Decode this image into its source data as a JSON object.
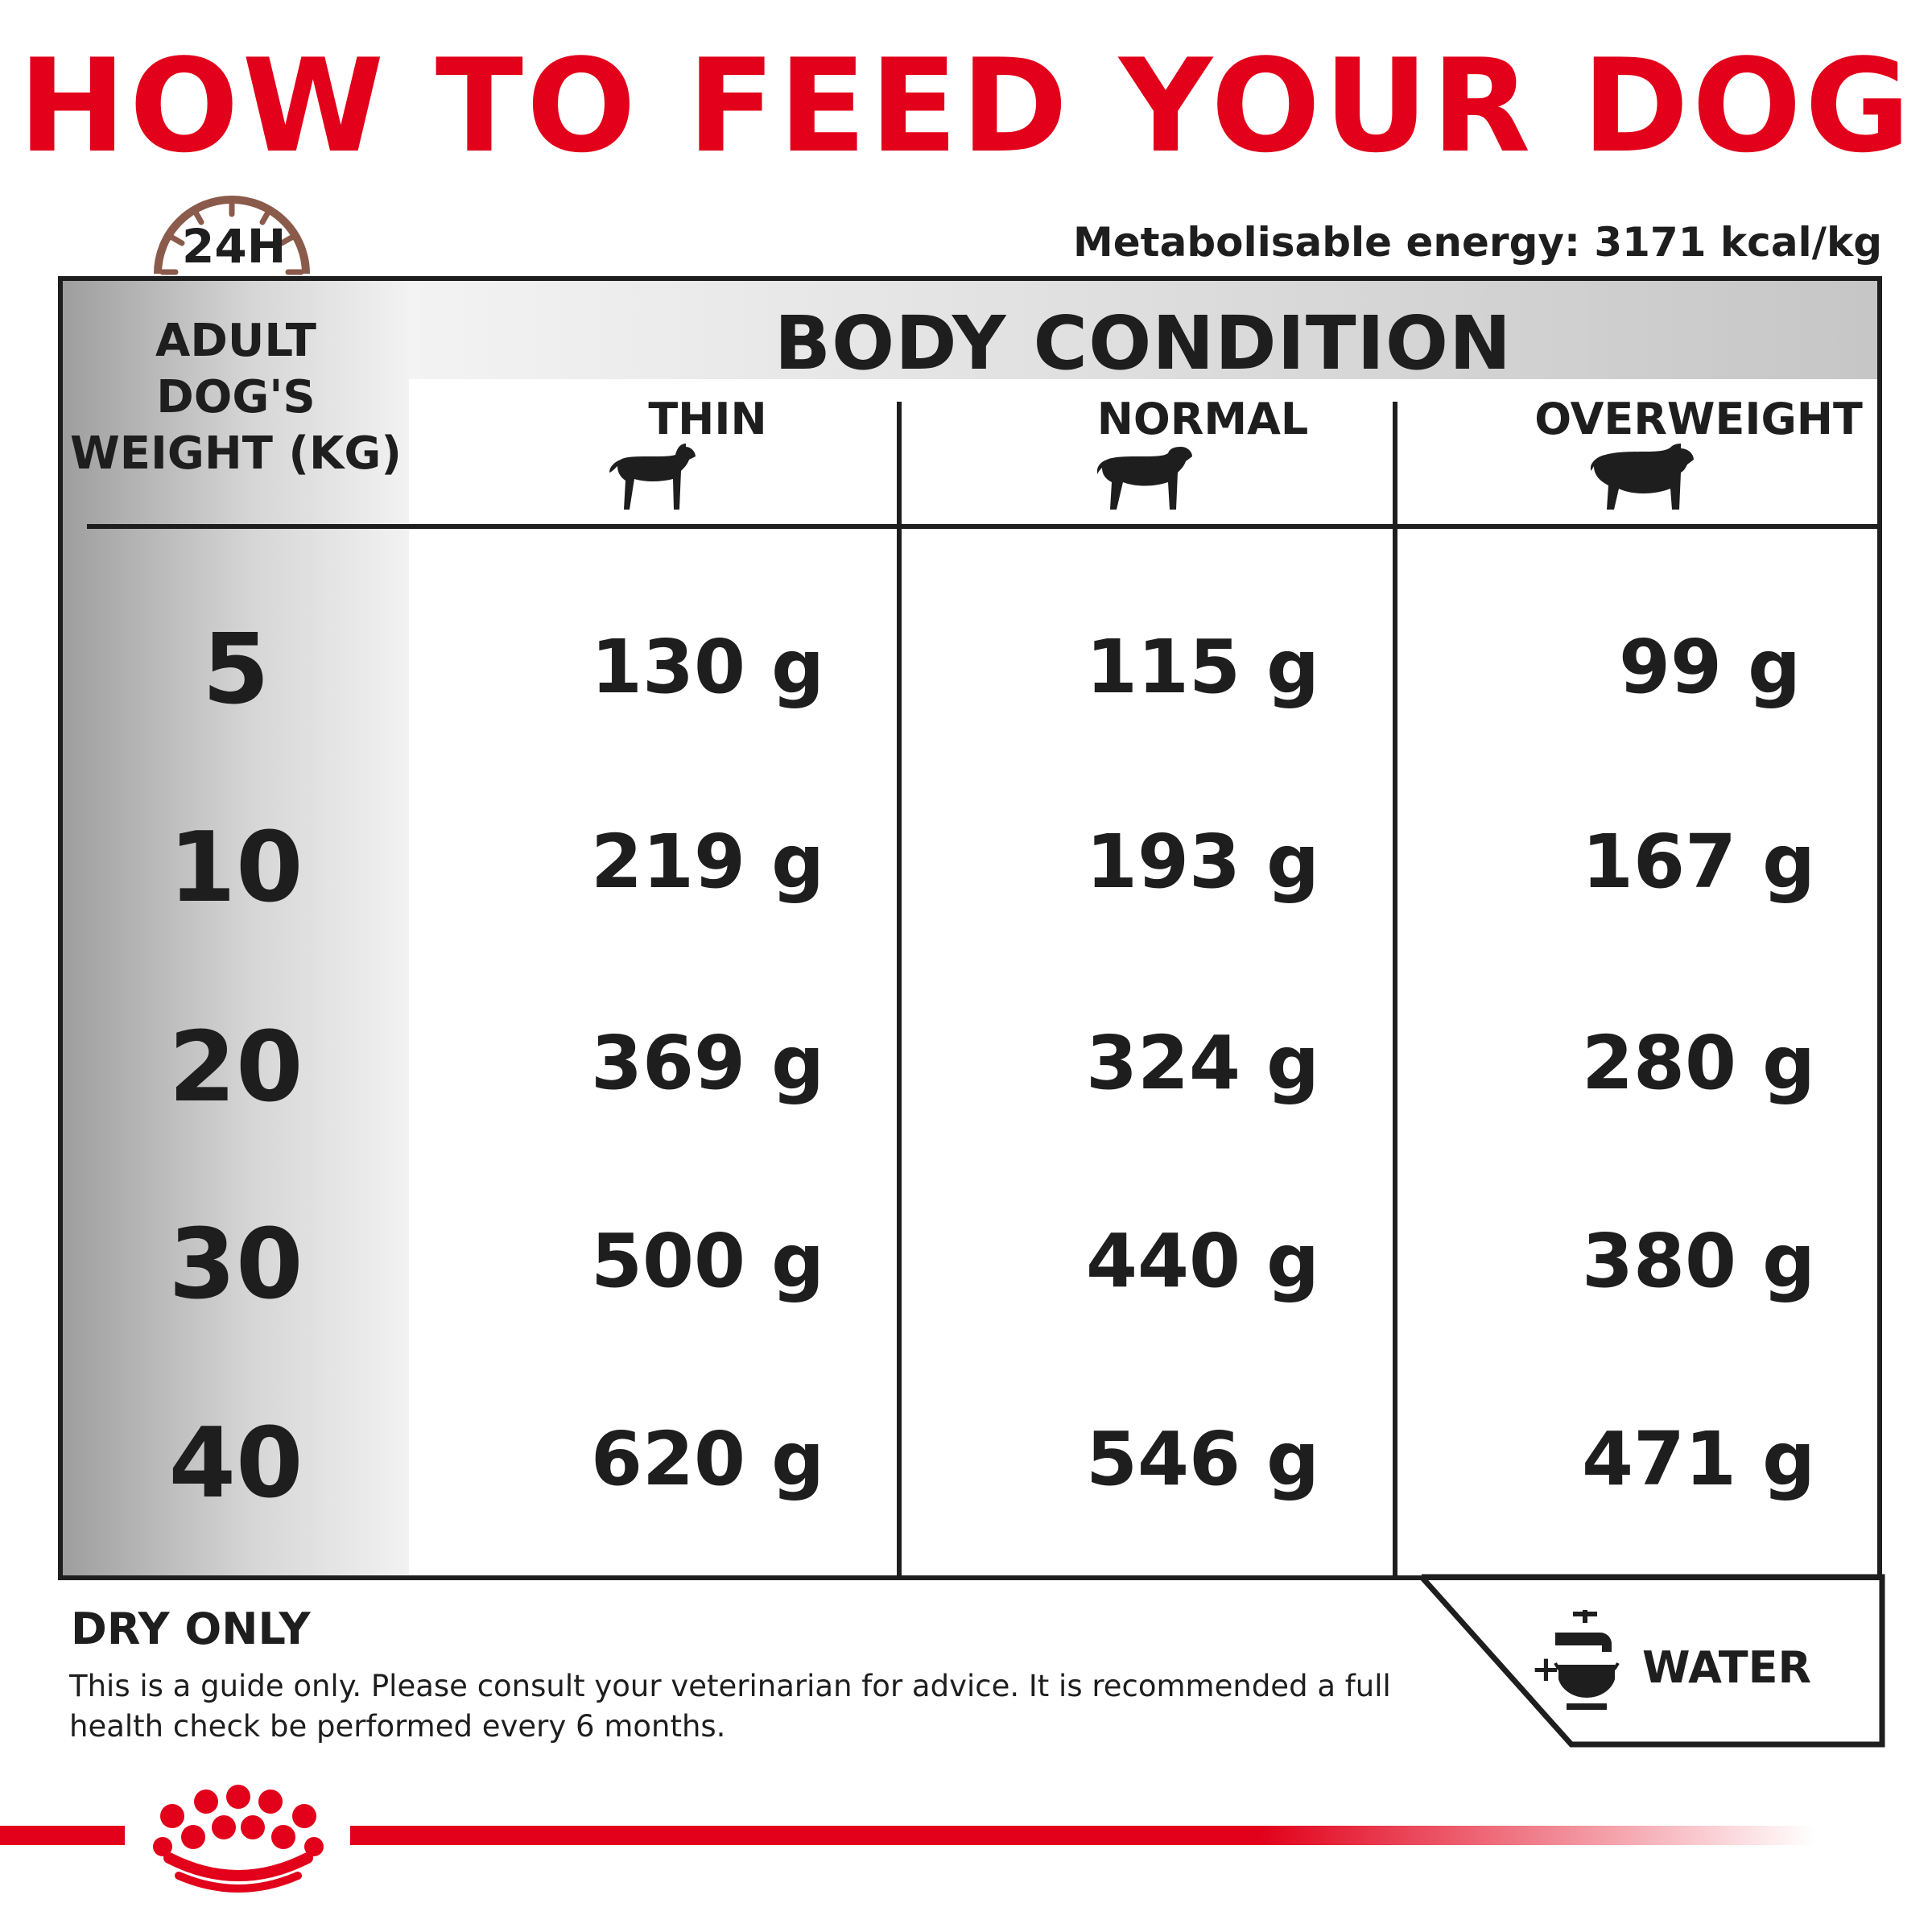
{
  "title": "HOW TO FEED YOUR DOG",
  "clock_label": "24H",
  "energy": "Metabolisable energy: 3171 kcal/kg",
  "table": {
    "section_title": "BODY CONDITION",
    "weight_header": [
      "ADULT",
      "DOG'S",
      "WEIGHT (KG)"
    ],
    "columns": [
      "THIN",
      "NORMAL",
      "OVERWEIGHT"
    ],
    "rows": [
      {
        "weight": "5",
        "values": [
          "130 g",
          "115 g",
          "99 g"
        ]
      },
      {
        "weight": "10",
        "values": [
          "219 g",
          "193 g",
          "167 g"
        ]
      },
      {
        "weight": "20",
        "values": [
          "369 g",
          "324 g",
          "280 g"
        ]
      },
      {
        "weight": "30",
        "values": [
          "500 g",
          "440 g",
          "380 g"
        ]
      },
      {
        "weight": "40",
        "values": [
          "620 g",
          "546 g",
          "471 g"
        ]
      }
    ]
  },
  "footer": {
    "dry_only": "DRY ONLY",
    "note": "This is a guide only. Please consult your veterinarian for advice. It is recommended a full health check be performed every 6 months.",
    "water_plus": "+",
    "water_label": "WATER"
  },
  "colors": {
    "brand_red": "#e2001a",
    "clock_brown": "#8a5a4a",
    "text_dark": "#1e1e1e"
  },
  "icons": [
    "clock-icon",
    "thin-dog-icon",
    "normal-dog-icon",
    "overweight-dog-icon",
    "water-tap-icon",
    "royal-canin-crown-logo"
  ]
}
